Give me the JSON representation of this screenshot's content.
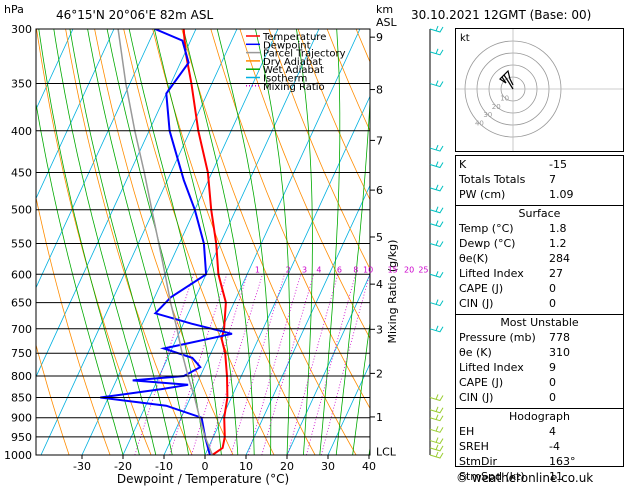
{
  "header": {
    "hpa_label": "hPa",
    "location": "46°15'N  20°06'E  82m  ASL",
    "km_label": "km",
    "asl_label": "ASL",
    "datetime": "30.10.2021  12GMT  (Base: 00)"
  },
  "axes": {
    "xlabel": "Dewpoint / Temperature (°C)",
    "mixing_label": "Mixing Ratio (g/kg)",
    "lcl_label": "LCL"
  },
  "legend": [
    {
      "label": "Temperature",
      "color": "#ff0000",
      "dash": "none"
    },
    {
      "label": "Dewpoint",
      "color": "#0000ff",
      "dash": "none"
    },
    {
      "label": "Parcel Trajectory",
      "color": "#999999",
      "dash": "none"
    },
    {
      "label": "Dry Adiabat",
      "color": "#ff8c00",
      "dash": "none"
    },
    {
      "label": "Wet Adiabat",
      "color": "#00aa00",
      "dash": "none"
    },
    {
      "label": "Isotherm",
      "color": "#00b0e0",
      "dash": "none"
    },
    {
      "label": "Mixing Ratio",
      "color": "#cc00cc",
      "dash": "dot"
    }
  ],
  "chart_data": {
    "type": "line",
    "title": "",
    "pressure_levels_hpa": [
      300,
      350,
      400,
      450,
      500,
      550,
      600,
      650,
      700,
      750,
      800,
      850,
      900,
      950,
      1000
    ],
    "temperature_ticks_c": [
      -30,
      -20,
      -10,
      0,
      10,
      20,
      30,
      40
    ],
    "xlim": [
      -40,
      40
    ],
    "ylim": [
      1000,
      300
    ],
    "km_ticks": [
      {
        "label": "9",
        "p": 307
      },
      {
        "label": "8",
        "p": 356
      },
      {
        "label": "7",
        "p": 411
      },
      {
        "label": "6",
        "p": 473
      },
      {
        "label": "5",
        "p": 540
      },
      {
        "label": "4",
        "p": 617
      },
      {
        "label": "3",
        "p": 701
      },
      {
        "label": "2",
        "p": 794
      },
      {
        "label": "1",
        "p": 898
      }
    ],
    "mixing_ratio_labels": [
      {
        "label": "1",
        "t": -7.5
      },
      {
        "label": "2",
        "t": 0
      },
      {
        "label": "3",
        "t": 4
      },
      {
        "label": "4",
        "t": 7.5
      },
      {
        "label": "6",
        "t": 12.5
      },
      {
        "label": "8",
        "t": 16.5
      },
      {
        "label": "10",
        "t": 19.5
      },
      {
        "label": "15",
        "t": 25.5
      },
      {
        "label": "20",
        "t": 29.5
      },
      {
        "label": "25",
        "t": 33
      }
    ],
    "series": [
      {
        "name": "Temperature",
        "color": "#ff0000",
        "points": [
          [
            1000,
            1.8
          ],
          [
            980,
            3.5
          ],
          [
            950,
            2.8
          ],
          [
            900,
            0.5
          ],
          [
            850,
            -1.0
          ],
          [
            800,
            -3.5
          ],
          [
            750,
            -6.5
          ],
          [
            720,
            -9.0
          ],
          [
            700,
            -9.5
          ],
          [
            650,
            -12.0
          ],
          [
            600,
            -17.0
          ],
          [
            550,
            -21.0
          ],
          [
            500,
            -26.0
          ],
          [
            450,
            -31.0
          ],
          [
            400,
            -38.0
          ],
          [
            350,
            -45.0
          ],
          [
            320,
            -50.0
          ],
          [
            300,
            -53.0
          ]
        ]
      },
      {
        "name": "Dewpoint",
        "color": "#0000ff",
        "points": [
          [
            1000,
            1.2
          ],
          [
            950,
            -2.0
          ],
          [
            900,
            -5.0
          ],
          [
            870,
            -15.0
          ],
          [
            850,
            -32.0
          ],
          [
            830,
            -18.0
          ],
          [
            820,
            -12.0
          ],
          [
            810,
            -26.0
          ],
          [
            800,
            -14.0
          ],
          [
            780,
            -11.0
          ],
          [
            760,
            -14.0
          ],
          [
            740,
            -22.0
          ],
          [
            710,
            -7.0
          ],
          [
            690,
            -18.0
          ],
          [
            670,
            -28.0
          ],
          [
            640,
            -26.0
          ],
          [
            600,
            -20.0
          ],
          [
            550,
            -24.0
          ],
          [
            500,
            -30.0
          ],
          [
            460,
            -36.0
          ],
          [
            400,
            -45.0
          ],
          [
            360,
            -50.0
          ],
          [
            330,
            -48.0
          ],
          [
            310,
            -52.0
          ],
          [
            300,
            -60.0
          ]
        ]
      },
      {
        "name": "Parcel Trajectory",
        "color": "#999999",
        "points": [
          [
            1000,
            1.8
          ],
          [
            950,
            -2.0
          ],
          [
            900,
            -5.5
          ],
          [
            850,
            -9.0
          ],
          [
            800,
            -13.0
          ],
          [
            750,
            -17.0
          ],
          [
            700,
            -21.0
          ],
          [
            650,
            -25.5
          ],
          [
            600,
            -30.0
          ],
          [
            550,
            -35.0
          ],
          [
            500,
            -40.5
          ],
          [
            450,
            -46.5
          ],
          [
            400,
            -53.5
          ],
          [
            350,
            -61.0
          ],
          [
            300,
            -69.0
          ]
        ]
      }
    ]
  },
  "hodograph": {
    "unit_label": "kt",
    "ring_labels": [
      "10",
      "20",
      "30",
      "40"
    ]
  },
  "indices": {
    "rows": [
      {
        "k": "K",
        "v": "-15"
      },
      {
        "k": "Totals Totals",
        "v": "7"
      },
      {
        "k": "PW (cm)",
        "v": "1.09"
      }
    ]
  },
  "surface": {
    "title": "Surface",
    "rows": [
      {
        "k": "Temp (°C)",
        "v": "1.8"
      },
      {
        "k": "Dewp (°C)",
        "v": "1.2"
      },
      {
        "k": "θe(K)",
        "v": "284"
      },
      {
        "k": "Lifted Index",
        "v": "27"
      },
      {
        "k": "CAPE (J)",
        "v": "0"
      },
      {
        "k": "CIN (J)",
        "v": "0"
      }
    ]
  },
  "most_unstable": {
    "title": "Most Unstable",
    "rows": [
      {
        "k": "Pressure (mb)",
        "v": "778"
      },
      {
        "k": "θe (K)",
        "v": "310"
      },
      {
        "k": "Lifted Index",
        "v": "9"
      },
      {
        "k": "CAPE (J)",
        "v": "0"
      },
      {
        "k": "CIN (J)",
        "v": "0"
      }
    ]
  },
  "hodo_table": {
    "title": "Hodograph",
    "rows": [
      {
        "k": "EH",
        "v": "4"
      },
      {
        "k": "SREH",
        "v": "-4"
      },
      {
        "k": "StmDir",
        "v": "163°"
      },
      {
        "k": "StmSpd (kt)",
        "v": "11"
      }
    ]
  },
  "footer": {
    "copyright": "© weatheronline.co.uk"
  }
}
